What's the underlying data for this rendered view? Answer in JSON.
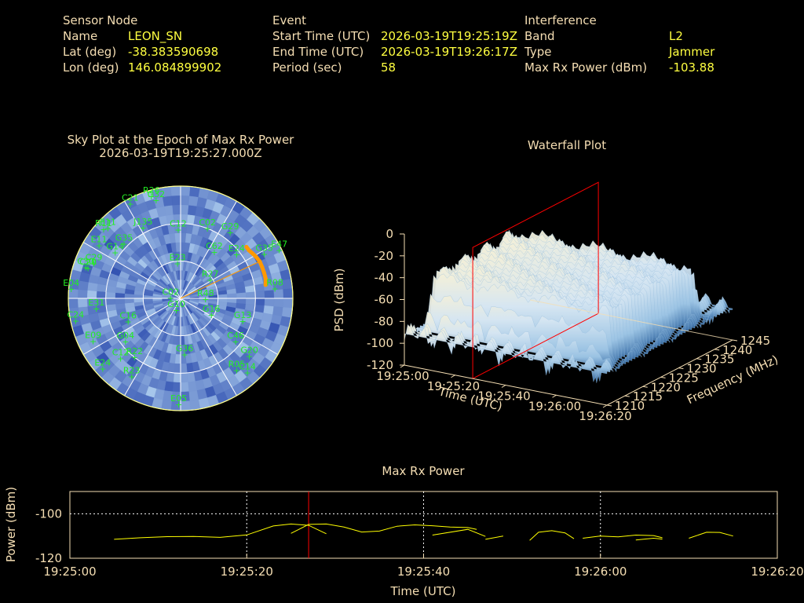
{
  "header": {
    "sensor": {
      "title": "Sensor Node",
      "rows": [
        {
          "key": "Name",
          "value": "LEON_SN"
        },
        {
          "key": "Lat (deg)",
          "value": "-38.383590698"
        },
        {
          "key": "Lon (deg)",
          "value": "146.084899902"
        }
      ]
    },
    "event": {
      "title": "Event",
      "rows": [
        {
          "key": "Start Time (UTC)",
          "value": "2026-03-19T19:25:19Z"
        },
        {
          "key": "End Time (UTC)",
          "value": "2026-03-19T19:26:17Z"
        },
        {
          "key": "Period (sec)",
          "value": "58"
        }
      ]
    },
    "interference": {
      "title": "Interference",
      "rows": [
        {
          "key": "Band",
          "value": "L2"
        },
        {
          "key": "Type",
          "value": "Jammer"
        },
        {
          "key": "Max Rx Power (dBm)",
          "value": "-103.88"
        }
      ]
    }
  },
  "colors": {
    "text": "#f5deb3",
    "value": "#ffff40",
    "satellite": "#22ee22",
    "jammer_track": "#ff9900",
    "marker": "#ff0000",
    "power_line": "#ffff00",
    "sky_dark": "#3050b0",
    "sky_light": "#a8c8ec"
  },
  "chart_data": [
    {
      "type": "scatter",
      "title": "Sky Plot at the Epoch of Max Rx Power",
      "subtitle": "2026-03-19T19:25:27.000Z",
      "elevation_rings": [
        0,
        30,
        60
      ],
      "satellites": [
        {
          "id": "R26",
          "az": 344,
          "el": 5
        },
        {
          "id": "G32",
          "az": 346,
          "el": 9
        },
        {
          "id": "C21",
          "az": 332,
          "el": 4
        },
        {
          "id": "R11",
          "az": 312,
          "el": 7
        },
        {
          "id": "E11",
          "az": 314,
          "el": 9
        },
        {
          "id": "E11",
          "az": 303,
          "el": 12
        },
        {
          "id": "C29",
          "az": 292,
          "el": 15
        },
        {
          "id": "G14",
          "az": 305,
          "el": 26
        },
        {
          "id": "G35",
          "az": 314,
          "el": 27
        },
        {
          "id": "J135",
          "az": 332,
          "el": 26
        },
        {
          "id": "C12",
          "az": 358,
          "el": 35
        },
        {
          "id": "C02",
          "az": 21,
          "el": 30
        },
        {
          "id": "G29",
          "az": 37,
          "el": 24
        },
        {
          "id": "C62",
          "az": 36,
          "el": 44
        },
        {
          "id": "E24",
          "az": 52,
          "el": 33
        },
        {
          "id": "E47",
          "az": 64,
          "el": 2
        },
        {
          "id": "G35",
          "az": 62,
          "el": 14
        },
        {
          "id": "R08",
          "az": 84,
          "el": 14
        },
        {
          "id": "E04",
          "az": 275,
          "el": 2
        },
        {
          "id": "C24",
          "az": 258,
          "el": 4
        },
        {
          "id": "C30",
          "az": 288,
          "el": 10
        },
        {
          "id": "C20",
          "az": 288,
          "el": 12
        },
        {
          "id": "E31",
          "az": 263,
          "el": 22
        },
        {
          "id": "C16",
          "az": 246,
          "el": 44
        },
        {
          "id": "G04",
          "az": 232,
          "el": 34
        },
        {
          "id": "E09",
          "az": 244,
          "el": 12
        },
        {
          "id": "C12",
          "az": 225,
          "el": 22
        },
        {
          "id": "R22",
          "az": 218,
          "el": 30
        },
        {
          "id": "E24",
          "az": 228,
          "el": 6
        },
        {
          "id": "R23",
          "az": 212,
          "el": 16
        },
        {
          "id": "E05",
          "az": 181,
          "el": 5
        },
        {
          "id": "G36",
          "az": 176,
          "el": 45
        },
        {
          "id": "G16",
          "az": 118,
          "el": 62
        },
        {
          "id": "G13",
          "az": 110,
          "el": 37
        },
        {
          "id": "C46",
          "az": 128,
          "el": 34
        },
        {
          "id": "G20",
          "az": 130,
          "el": 18
        },
        {
          "id": "R05",
          "az": 142,
          "el": 17
        },
        {
          "id": "C14",
          "az": 138,
          "el": 10
        },
        {
          "id": "R27",
          "az": 58,
          "el": 62
        },
        {
          "id": "R48",
          "az": 92,
          "el": 70
        },
        {
          "id": "C02",
          "az": 272,
          "el": 82
        },
        {
          "id": "G10",
          "az": 200,
          "el": 80
        },
        {
          "id": "E23",
          "az": 355,
          "el": 62
        }
      ],
      "jammer_track": [
        [
          52,
          23
        ],
        [
          55,
          23
        ],
        [
          58,
          22
        ],
        [
          61,
          21
        ],
        [
          65,
          20
        ],
        [
          69,
          20
        ],
        [
          73,
          20
        ],
        [
          77,
          20
        ],
        [
          81,
          21
        ]
      ]
    },
    {
      "type": "area",
      "title": "Waterfall Plot",
      "xlabel": "Time (UTC)",
      "ylabel": "Frequency (MHz)",
      "zlabel": "PSD (dBm)",
      "x_ticks": [
        "19:25:00",
        "19:25:20",
        "19:25:40",
        "19:26:00",
        "19:26:20"
      ],
      "y_ticks": [
        1210,
        1215,
        1220,
        1225,
        1230,
        1235,
        1240,
        1245
      ],
      "z_ticks": [
        0,
        -20,
        -40,
        -60,
        -80,
        -100,
        -120
      ],
      "xlim": [
        0,
        80
      ],
      "ylim": [
        1210,
        1245
      ],
      "zlim": [
        -120,
        0
      ],
      "marker_time": "19:25:27",
      "signal_band_mhz": [
        1212,
        1240
      ],
      "signal_level_dbm": -42,
      "noise_floor_dbm": -88
    },
    {
      "type": "line",
      "title": "Max Rx Power",
      "xlabel": "Time (UTC)",
      "ylabel": "Power (dBm)",
      "x_ticks": [
        "19:25:00",
        "19:25:20",
        "19:25:40",
        "19:26:00",
        "19:26:20"
      ],
      "y_ticks": [
        -100,
        -120
      ],
      "xlim": [
        0,
        80
      ],
      "ylim": [
        -120,
        -90
      ],
      "marker_time_sec": 27,
      "segments": [
        [
          [
            5,
            -111.5
          ],
          [
            8,
            -110.8
          ],
          [
            11,
            -110.3
          ],
          [
            14,
            -110.2
          ],
          [
            17,
            -110.6
          ],
          [
            20,
            -109.5
          ],
          [
            23,
            -105.5
          ],
          [
            25,
            -104.6
          ],
          [
            27,
            -105.2
          ],
          [
            29,
            -109.0
          ]
        ],
        [
          [
            25,
            -108.8
          ],
          [
            27,
            -104.8
          ],
          [
            29,
            -104.6
          ],
          [
            31,
            -106.0
          ],
          [
            33,
            -108.2
          ],
          [
            35,
            -107.8
          ],
          [
            37,
            -105.6
          ],
          [
            39,
            -105.0
          ],
          [
            41,
            -105.4
          ],
          [
            43,
            -106.0
          ],
          [
            45,
            -106.2
          ],
          [
            46,
            -107.0
          ]
        ],
        [
          [
            41,
            -109.6
          ],
          [
            45,
            -107.0
          ],
          [
            47,
            -110.2
          ]
        ],
        [
          [
            47,
            -111.5
          ],
          [
            49,
            -110.0
          ]
        ],
        [
          [
            52,
            -112.0
          ],
          [
            53,
            -108.3
          ],
          [
            54.5,
            -107.6
          ],
          [
            56,
            -108.6
          ],
          [
            57,
            -111.2
          ]
        ],
        [
          [
            58,
            -111.0
          ],
          [
            60,
            -110.0
          ],
          [
            62,
            -110.4
          ],
          [
            64,
            -109.6
          ],
          [
            66,
            -109.8
          ],
          [
            67,
            -110.8
          ]
        ],
        [
          [
            64,
            -111.8
          ],
          [
            66,
            -111.0
          ],
          [
            67,
            -111.4
          ]
        ],
        [
          [
            70,
            -111.0
          ],
          [
            72,
            -108.3
          ],
          [
            73.5,
            -108.4
          ],
          [
            75,
            -110.0
          ]
        ]
      ]
    }
  ]
}
